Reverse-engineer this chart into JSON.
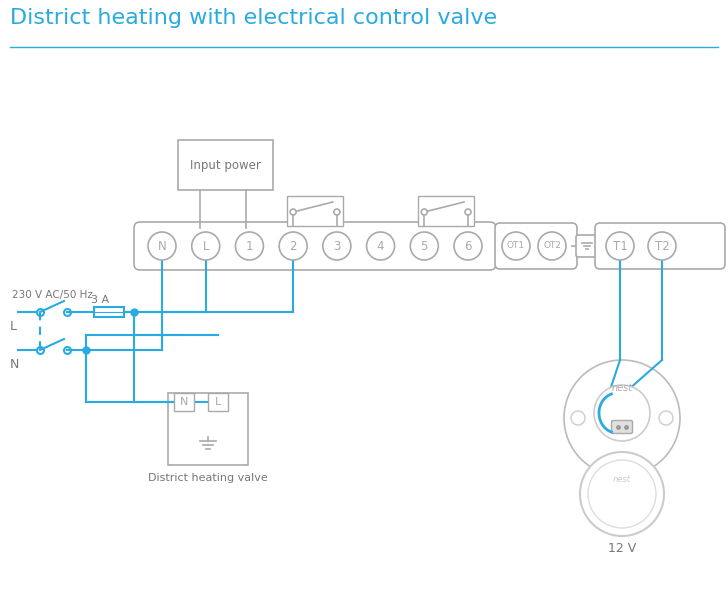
{
  "title": "District heating with electrical control valve",
  "title_color": "#29aae1",
  "title_fontsize": 16,
  "bg_color": "#ffffff",
  "line_color": "#29aae1",
  "gray": "#aaaaaa",
  "dark_gray": "#777777",
  "label_230": "230 V AC/50 Hz",
  "label_L": "L",
  "label_N": "N",
  "label_3A": "3 A",
  "label_input_power": "Input power",
  "label_valve": "District heating valve",
  "label_12v": "12 V",
  "terminal_labels_main": [
    "N",
    "L",
    "1",
    "2",
    "3",
    "4",
    "5",
    "6"
  ],
  "terminal_labels_ot": [
    "OT1",
    "OT2"
  ],
  "terminal_labels_t": [
    "T1",
    "T2"
  ]
}
